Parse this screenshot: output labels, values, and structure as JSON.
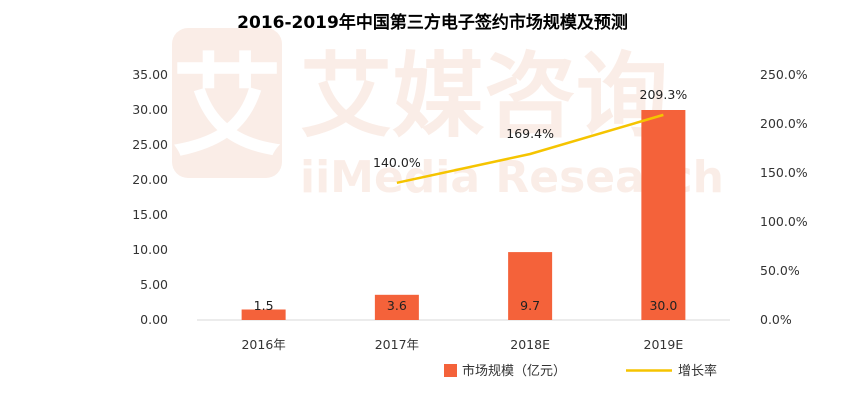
{
  "chart_data": {
    "type": "bar",
    "title": "2016-2019年中国第三方电子签约市场规模及预测",
    "categories": [
      "2016年",
      "2017年",
      "2018E",
      "2019E"
    ],
    "series": [
      {
        "name": "市场规模（亿元）",
        "type": "bar",
        "axis": "left",
        "color": "#f4623a",
        "values": [
          1.5,
          3.6,
          9.7,
          30.0
        ],
        "labels": [
          "1.5",
          "3.6",
          "9.7",
          "30.0"
        ]
      },
      {
        "name": "增长率",
        "type": "line",
        "axis": "right",
        "color": "#f5c400",
        "values": [
          null,
          140.0,
          169.4,
          209.3
        ],
        "labels": [
          null,
          "140.0%",
          "169.4%",
          "209.3%"
        ]
      }
    ],
    "y_left": {
      "ylim": [
        0,
        35
      ],
      "ticks": [
        "0.00",
        "5.00",
        "10.00",
        "15.00",
        "20.00",
        "25.00",
        "30.00",
        "35.00"
      ]
    },
    "y_right": {
      "ylim": [
        0,
        250
      ],
      "ticks": [
        "0.0%",
        "50.0%",
        "100.0%",
        "150.0%",
        "200.0%",
        "250.0%"
      ]
    },
    "grid": false,
    "legend_position": "bottom-right"
  },
  "watermark": {
    "text_cn": "艾媒咨询",
    "text_en": "iiMedia Research",
    "logo_char": "艾",
    "color": "#f6dcd0"
  },
  "colors": {
    "bar": "#f4623a",
    "line": "#f5c400",
    "axis": "#d9d9d9"
  }
}
